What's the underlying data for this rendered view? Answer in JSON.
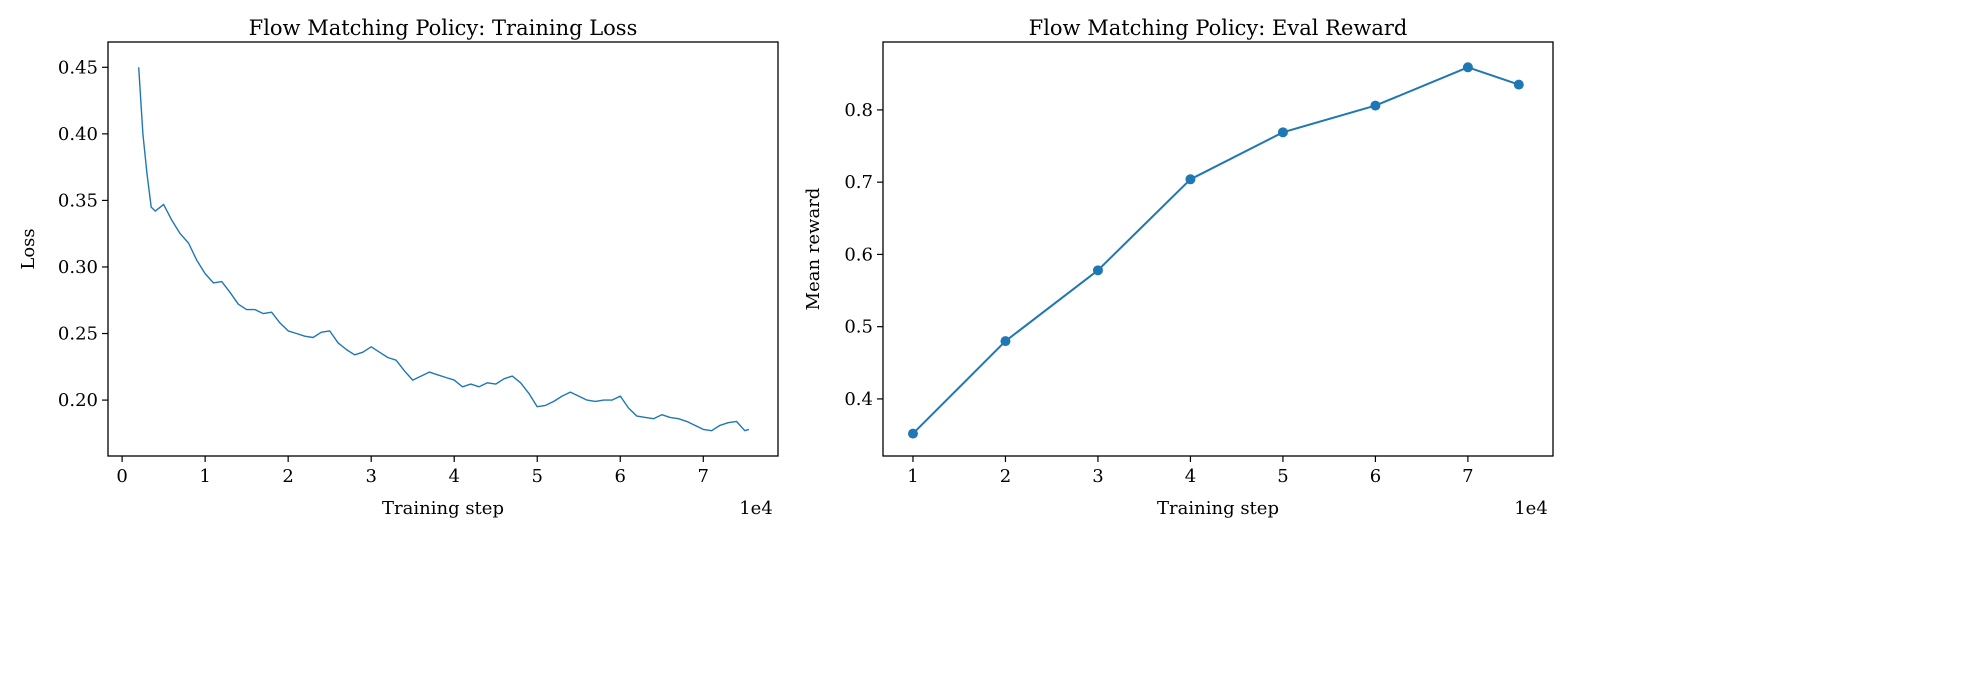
{
  "chart_data": [
    {
      "type": "line",
      "title": "Flow Matching Policy: Training Loss",
      "xlabel": "Training step",
      "ylabel": "Loss",
      "x_offset_label": "1e4",
      "xlim": [
        -1700,
        79000
      ],
      "ylim": [
        0.158,
        0.469
      ],
      "xticks": [
        0,
        10000,
        20000,
        30000,
        40000,
        50000,
        60000,
        70000
      ],
      "xtick_labels": [
        "0",
        "1",
        "2",
        "3",
        "4",
        "5",
        "6",
        "7"
      ],
      "yticks": [
        0.2,
        0.25,
        0.3,
        0.35,
        0.4,
        0.45
      ],
      "ytick_labels": [
        "0.20",
        "0.25",
        "0.30",
        "0.35",
        "0.40",
        "0.45"
      ],
      "grid": false,
      "color": "#1f77b4",
      "x": [
        2000,
        2500,
        3000,
        3500,
        4000,
        5000,
        6000,
        7000,
        8000,
        9000,
        10000,
        11000,
        12000,
        13000,
        14000,
        15000,
        16000,
        17000,
        18000,
        19000,
        20000,
        21000,
        22000,
        23000,
        24000,
        25000,
        26000,
        27000,
        28000,
        29000,
        30000,
        31000,
        32000,
        33000,
        34000,
        35000,
        36000,
        37000,
        38000,
        39000,
        40000,
        41000,
        42000,
        43000,
        44000,
        45000,
        46000,
        47000,
        48000,
        49000,
        50000,
        51000,
        52000,
        53000,
        54000,
        55000,
        56000,
        57000,
        58000,
        59000,
        60000,
        61000,
        62000,
        63000,
        64000,
        65000,
        66000,
        67000,
        68000,
        69000,
        70000,
        71000,
        72000,
        73000,
        74000,
        75000,
        75500
      ],
      "y": [
        0.45,
        0.4,
        0.37,
        0.345,
        0.342,
        0.347,
        0.335,
        0.325,
        0.318,
        0.305,
        0.295,
        0.288,
        0.289,
        0.281,
        0.272,
        0.268,
        0.268,
        0.265,
        0.266,
        0.258,
        0.252,
        0.25,
        0.248,
        0.247,
        0.251,
        0.252,
        0.243,
        0.238,
        0.234,
        0.236,
        0.24,
        0.236,
        0.232,
        0.23,
        0.222,
        0.215,
        0.218,
        0.221,
        0.219,
        0.217,
        0.215,
        0.21,
        0.212,
        0.21,
        0.213,
        0.212,
        0.216,
        0.218,
        0.213,
        0.205,
        0.195,
        0.196,
        0.199,
        0.203,
        0.206,
        0.203,
        0.2,
        0.199,
        0.2,
        0.2,
        0.203,
        0.194,
        0.188,
        0.187,
        0.186,
        0.189,
        0.187,
        0.186,
        0.184,
        0.181,
        0.178,
        0.177,
        0.181,
        0.183,
        0.184,
        0.177,
        0.178
      ]
    },
    {
      "type": "line",
      "title": "Flow Matching Policy: Eval Reward",
      "xlabel": "Training step",
      "ylabel": "Mean reward",
      "x_offset_label": "1e4",
      "xlim": [
        6760,
        79200
      ],
      "ylim": [
        0.321,
        0.894
      ],
      "xticks": [
        10000,
        20000,
        30000,
        40000,
        50000,
        60000,
        70000
      ],
      "xtick_labels": [
        "1",
        "2",
        "3",
        "4",
        "5",
        "6",
        "7"
      ],
      "yticks": [
        0.4,
        0.5,
        0.6,
        0.7,
        0.8
      ],
      "ytick_labels": [
        "0.4",
        "0.5",
        "0.6",
        "0.7",
        "0.8"
      ],
      "grid": false,
      "markers": true,
      "color": "#1f77b4",
      "x": [
        10000,
        20000,
        30000,
        40000,
        50000,
        60000,
        70000,
        75500
      ],
      "y": [
        0.352,
        0.48,
        0.578,
        0.704,
        0.769,
        0.806,
        0.859,
        0.835
      ]
    }
  ]
}
